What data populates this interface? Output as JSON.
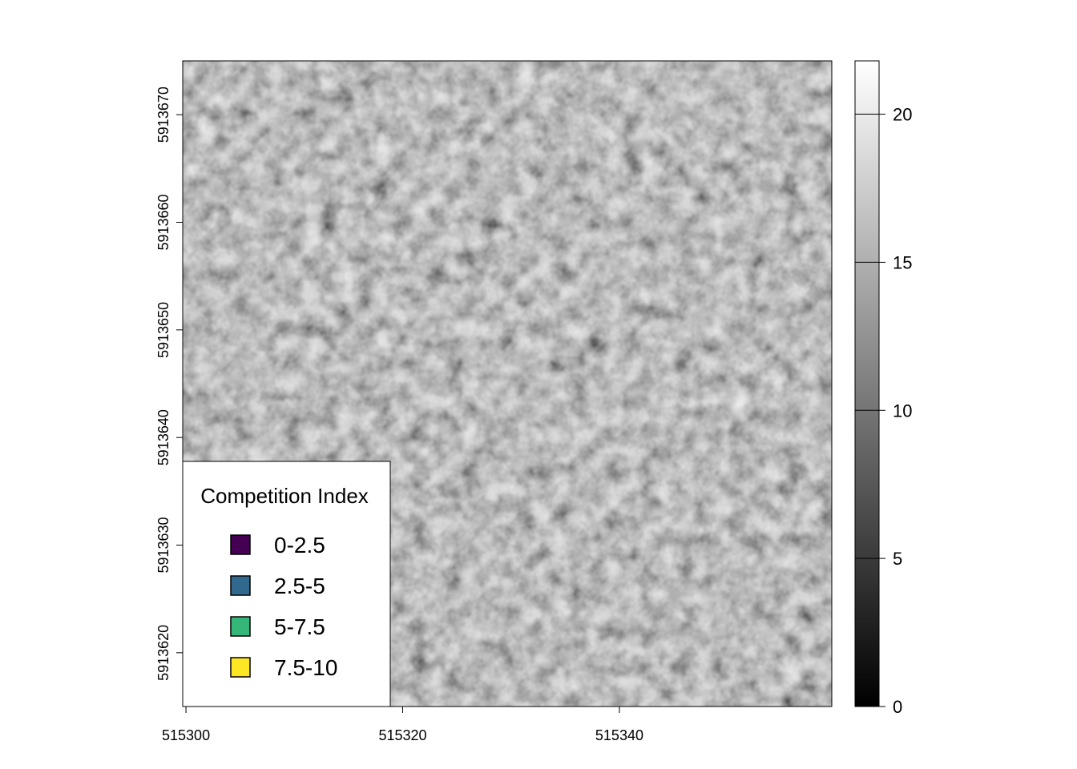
{
  "x_axis": {
    "ticks": [
      515300,
      515320,
      515340
    ],
    "labels": [
      "515300",
      "515320",
      "515340"
    ],
    "range": [
      515299.7,
      515359.6
    ]
  },
  "y_axis": {
    "ticks": [
      5913620,
      5913630,
      5913640,
      5913650,
      5913660,
      5913670
    ],
    "labels": [
      "5913620",
      "5913630",
      "5913640",
      "5913650",
      "5913660",
      "5913670"
    ],
    "range": [
      5913615.0,
      5913675.0
    ]
  },
  "colorbar": {
    "ticks": [
      0,
      5,
      10,
      15,
      20
    ],
    "labels": [
      "0",
      "5",
      "10",
      "15",
      "20"
    ],
    "range": [
      0,
      21.8
    ],
    "colors": [
      "#000000",
      "#ffffff"
    ]
  },
  "legend": {
    "title": "Competition Index",
    "items": [
      {
        "label": "0-2.5",
        "color": "#440154"
      },
      {
        "label": "2.5-5",
        "color": "#31688e"
      },
      {
        "label": "5-7.5",
        "color": "#35b779"
      },
      {
        "label": "7.5-10",
        "color": "#fde725"
      }
    ]
  },
  "chart_data": {
    "type": "scatter",
    "xlim": [
      515299.7,
      515359.6
    ],
    "ylim": [
      5913615.0,
      5913675.0
    ],
    "classes": [
      "0-2.5",
      "2.5-5",
      "5-7.5",
      "7.5-10"
    ],
    "colors": [
      "#440154",
      "#31688e",
      "#35b779",
      "#fde725"
    ],
    "x": [],
    "y": [],
    "category": []
  }
}
